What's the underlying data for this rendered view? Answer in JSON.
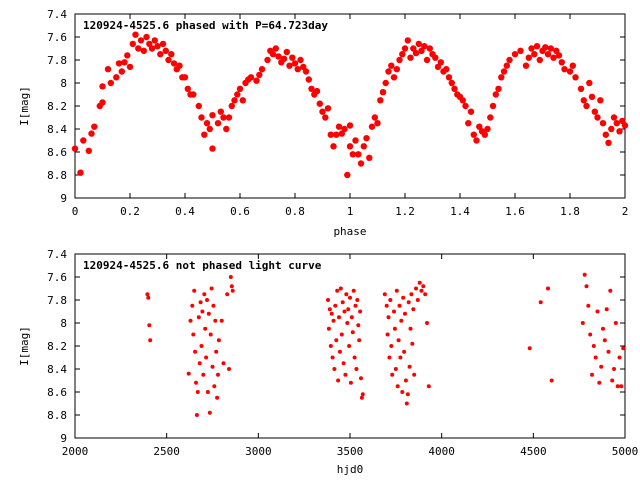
{
  "chart_data": [
    {
      "type": "scatter",
      "title": "120924-4525.6 phased with P=64.723day",
      "xlabel": "phase",
      "ylabel": "I[mag]",
      "xlim": [
        0,
        2
      ],
      "ylim": [
        9,
        7.4
      ],
      "y_inverted": true,
      "grid": false,
      "marker_color": "#ff0000",
      "marker": "filled-circle",
      "x_ticks": [
        "0",
        "0.2",
        "0.4",
        "0.6",
        "0.8",
        "1",
        "1.2",
        "1.4",
        "1.6",
        "1.8",
        "2"
      ],
      "y_ticks": [
        "7.4",
        "7.6",
        "7.8",
        "8",
        "8.2",
        "8.4",
        "8.6",
        "8.8",
        "9"
      ],
      "points": [
        [
          0.0,
          8.57
        ],
        [
          0.02,
          8.78
        ],
        [
          0.03,
          8.5
        ],
        [
          0.05,
          8.59
        ],
        [
          0.06,
          8.44
        ],
        [
          0.07,
          8.38
        ],
        [
          0.09,
          8.2
        ],
        [
          0.1,
          8.17
        ],
        [
          0.1,
          8.03
        ],
        [
          0.12,
          7.88
        ],
        [
          0.13,
          8.0
        ],
        [
          0.15,
          7.95
        ],
        [
          0.16,
          7.83
        ],
        [
          0.17,
          7.9
        ],
        [
          0.18,
          7.82
        ],
        [
          0.19,
          7.76
        ],
        [
          0.2,
          7.86
        ],
        [
          0.21,
          7.66
        ],
        [
          0.22,
          7.58
        ],
        [
          0.23,
          7.7
        ],
        [
          0.24,
          7.63
        ],
        [
          0.25,
          7.72
        ],
        [
          0.26,
          7.6
        ],
        [
          0.27,
          7.66
        ],
        [
          0.28,
          7.7
        ],
        [
          0.29,
          7.63
        ],
        [
          0.3,
          7.68
        ],
        [
          0.31,
          7.75
        ],
        [
          0.32,
          7.66
        ],
        [
          0.33,
          7.72
        ],
        [
          0.34,
          7.8
        ],
        [
          0.35,
          7.75
        ],
        [
          0.36,
          7.83
        ],
        [
          0.37,
          7.88
        ],
        [
          0.38,
          7.85
        ],
        [
          0.39,
          7.95
        ],
        [
          0.4,
          7.95
        ],
        [
          0.41,
          8.05
        ],
        [
          0.42,
          8.1
        ],
        [
          0.43,
          8.1
        ],
        [
          0.45,
          8.2
        ],
        [
          0.46,
          8.3
        ],
        [
          0.47,
          8.45
        ],
        [
          0.48,
          8.35
        ],
        [
          0.49,
          8.4
        ],
        [
          0.5,
          8.28
        ],
        [
          0.5,
          8.57
        ],
        [
          0.52,
          8.35
        ],
        [
          0.53,
          8.25
        ],
        [
          0.54,
          8.3
        ],
        [
          0.55,
          8.4
        ],
        [
          0.56,
          8.3
        ],
        [
          0.57,
          8.2
        ],
        [
          0.58,
          8.15
        ],
        [
          0.59,
          8.1
        ],
        [
          0.6,
          8.05
        ],
        [
          0.61,
          8.15
        ],
        [
          0.62,
          8.0
        ],
        [
          0.63,
          7.97
        ],
        [
          0.64,
          7.95
        ],
        [
          0.66,
          7.98
        ],
        [
          0.67,
          7.93
        ],
        [
          0.68,
          7.88
        ],
        [
          0.7,
          7.8
        ],
        [
          0.71,
          7.72
        ],
        [
          0.72,
          7.75
        ],
        [
          0.73,
          7.7
        ],
        [
          0.74,
          7.77
        ],
        [
          0.75,
          7.82
        ],
        [
          0.76,
          7.79
        ],
        [
          0.77,
          7.73
        ],
        [
          0.78,
          7.85
        ],
        [
          0.79,
          7.78
        ],
        [
          0.8,
          7.83
        ],
        [
          0.81,
          7.88
        ],
        [
          0.82,
          7.8
        ],
        [
          0.83,
          7.86
        ],
        [
          0.84,
          7.9
        ],
        [
          0.85,
          7.97
        ],
        [
          0.86,
          8.05
        ],
        [
          0.87,
          8.1
        ],
        [
          0.88,
          8.07
        ],
        [
          0.89,
          8.18
        ],
        [
          0.9,
          8.25
        ],
        [
          0.91,
          8.3
        ],
        [
          0.92,
          8.22
        ],
        [
          0.93,
          8.45
        ],
        [
          0.94,
          8.55
        ],
        [
          0.95,
          8.45
        ],
        [
          0.96,
          8.38
        ],
        [
          0.97,
          8.44
        ],
        [
          0.98,
          8.4
        ],
        [
          0.99,
          8.8
        ],
        [
          1.0,
          8.37
        ],
        [
          1.0,
          8.55
        ],
        [
          1.01,
          8.62
        ],
        [
          1.02,
          8.5
        ],
        [
          1.03,
          8.62
        ],
        [
          1.04,
          8.7
        ],
        [
          1.05,
          8.55
        ],
        [
          1.06,
          8.48
        ],
        [
          1.07,
          8.65
        ],
        [
          1.08,
          8.38
        ],
        [
          1.09,
          8.3
        ],
        [
          1.1,
          8.35
        ],
        [
          1.11,
          8.15
        ],
        [
          1.12,
          8.08
        ],
        [
          1.13,
          8.0
        ],
        [
          1.14,
          7.9
        ],
        [
          1.15,
          7.85
        ],
        [
          1.16,
          7.95
        ],
        [
          1.17,
          7.88
        ],
        [
          1.18,
          7.8
        ],
        [
          1.19,
          7.75
        ],
        [
          1.2,
          7.7
        ],
        [
          1.21,
          7.63
        ],
        [
          1.22,
          7.78
        ],
        [
          1.23,
          7.7
        ],
        [
          1.24,
          7.74
        ],
        [
          1.25,
          7.66
        ],
        [
          1.26,
          7.72
        ],
        [
          1.27,
          7.68
        ],
        [
          1.28,
          7.8
        ],
        [
          1.29,
          7.7
        ],
        [
          1.3,
          7.75
        ],
        [
          1.31,
          7.78
        ],
        [
          1.32,
          7.86
        ],
        [
          1.33,
          7.82
        ],
        [
          1.34,
          7.9
        ],
        [
          1.35,
          7.88
        ],
        [
          1.36,
          7.95
        ],
        [
          1.37,
          8.0
        ],
        [
          1.38,
          8.05
        ],
        [
          1.39,
          8.1
        ],
        [
          1.4,
          8.12
        ],
        [
          1.41,
          8.15
        ],
        [
          1.42,
          8.2
        ],
        [
          1.43,
          8.35
        ],
        [
          1.44,
          8.25
        ],
        [
          1.45,
          8.45
        ],
        [
          1.46,
          8.5
        ],
        [
          1.47,
          8.38
        ],
        [
          1.48,
          8.42
        ],
        [
          1.49,
          8.45
        ],
        [
          1.5,
          8.4
        ],
        [
          1.51,
          8.3
        ],
        [
          1.52,
          8.2
        ],
        [
          1.53,
          8.1
        ],
        [
          1.54,
          8.05
        ],
        [
          1.55,
          7.95
        ],
        [
          1.56,
          7.9
        ],
        [
          1.57,
          7.85
        ],
        [
          1.58,
          7.8
        ],
        [
          1.6,
          7.75
        ],
        [
          1.62,
          7.72
        ],
        [
          1.64,
          7.85
        ],
        [
          1.65,
          7.78
        ],
        [
          1.66,
          7.7
        ],
        [
          1.67,
          7.75
        ],
        [
          1.68,
          7.68
        ],
        [
          1.69,
          7.8
        ],
        [
          1.7,
          7.72
        ],
        [
          1.71,
          7.69
        ],
        [
          1.72,
          7.75
        ],
        [
          1.73,
          7.7
        ],
        [
          1.74,
          7.78
        ],
        [
          1.75,
          7.72
        ],
        [
          1.76,
          7.76
        ],
        [
          1.77,
          7.82
        ],
        [
          1.78,
          7.88
        ],
        [
          1.8,
          7.9
        ],
        [
          1.81,
          7.85
        ],
        [
          1.82,
          7.95
        ],
        [
          1.84,
          8.05
        ],
        [
          1.85,
          8.15
        ],
        [
          1.86,
          8.2
        ],
        [
          1.87,
          8.0
        ],
        [
          1.88,
          8.12
        ],
        [
          1.89,
          8.25
        ],
        [
          1.9,
          8.3
        ],
        [
          1.91,
          8.15
        ],
        [
          1.92,
          8.35
        ],
        [
          1.93,
          8.45
        ],
        [
          1.94,
          8.52
        ],
        [
          1.95,
          8.4
        ],
        [
          1.96,
          8.3
        ],
        [
          1.97,
          8.35
        ],
        [
          1.98,
          8.42
        ],
        [
          1.99,
          8.33
        ],
        [
          2.0,
          8.37
        ]
      ]
    },
    {
      "type": "scatter",
      "title": "120924-4525.6 not phased light curve",
      "xlabel": "hjd0",
      "ylabel": "I[mag]",
      "xlim": [
        2000,
        5000
      ],
      "ylim": [
        9,
        7.4
      ],
      "y_inverted": true,
      "grid": false,
      "marker_color": "#ff0000",
      "marker": "small-filled-circle",
      "x_ticks": [
        "2000",
        "2500",
        "3000",
        "3500",
        "4000",
        "4500",
        "5000"
      ],
      "y_ticks": [
        "7.4",
        "7.6",
        "7.8",
        "8",
        "8.2",
        "8.4",
        "8.6",
        "8.8",
        "9"
      ],
      "points": [
        [
          2395,
          7.75
        ],
        [
          2400,
          7.78
        ],
        [
          2405,
          8.02
        ],
        [
          2410,
          8.15
        ],
        [
          2620,
          8.44
        ],
        [
          2630,
          7.98
        ],
        [
          2640,
          7.85
        ],
        [
          2645,
          8.1
        ],
        [
          2650,
          7.72
        ],
        [
          2655,
          8.25
        ],
        [
          2660,
          8.52
        ],
        [
          2665,
          8.8
        ],
        [
          2670,
          8.6
        ],
        [
          2675,
          7.95
        ],
        [
          2680,
          8.35
        ],
        [
          2685,
          7.82
        ],
        [
          2690,
          8.2
        ],
        [
          2695,
          7.9
        ],
        [
          2700,
          8.45
        ],
        [
          2705,
          7.75
        ],
        [
          2710,
          8.05
        ],
        [
          2715,
          8.3
        ],
        [
          2720,
          7.8
        ],
        [
          2725,
          8.6
        ],
        [
          2730,
          7.92
        ],
        [
          2735,
          8.78
        ],
        [
          2740,
          8.1
        ],
        [
          2745,
          7.7
        ],
        [
          2750,
          8.38
        ],
        [
          2755,
          7.85
        ],
        [
          2760,
          8.55
        ],
        [
          2765,
          7.98
        ],
        [
          2770,
          8.25
        ],
        [
          2775,
          8.65
        ],
        [
          2780,
          8.45
        ],
        [
          2785,
          8.15
        ],
        [
          2800,
          7.98
        ],
        [
          2810,
          8.35
        ],
        [
          2830,
          7.75
        ],
        [
          2840,
          8.4
        ],
        [
          2850,
          7.6
        ],
        [
          2855,
          7.68
        ],
        [
          2860,
          7.72
        ],
        [
          3380,
          7.8
        ],
        [
          3385,
          8.05
        ],
        [
          3390,
          7.88
        ],
        [
          3395,
          8.2
        ],
        [
          3400,
          7.92
        ],
        [
          3405,
          8.3
        ],
        [
          3410,
          7.98
        ],
        [
          3415,
          8.4
        ],
        [
          3420,
          7.85
        ],
        [
          3425,
          8.15
        ],
        [
          3430,
          7.72
        ],
        [
          3435,
          8.5
        ],
        [
          3440,
          7.95
        ],
        [
          3445,
          8.25
        ],
        [
          3450,
          7.7
        ],
        [
          3455,
          8.1
        ],
        [
          3460,
          7.82
        ],
        [
          3465,
          8.35
        ],
        [
          3470,
          7.9
        ],
        [
          3475,
          8.45
        ],
        [
          3480,
          7.75
        ],
        [
          3485,
          8.0
        ],
        [
          3490,
          7.88
        ],
        [
          3495,
          8.2
        ],
        [
          3500,
          7.78
        ],
        [
          3505,
          8.52
        ],
        [
          3510,
          7.95
        ],
        [
          3515,
          8.08
        ],
        [
          3520,
          7.72
        ],
        [
          3525,
          8.3
        ],
        [
          3530,
          7.85
        ],
        [
          3535,
          8.4
        ],
        [
          3540,
          7.8
        ],
        [
          3545,
          8.02
        ],
        [
          3550,
          8.15
        ],
        [
          3555,
          7.9
        ],
        [
          3560,
          8.48
        ],
        [
          3565,
          8.65
        ],
        [
          3570,
          8.62
        ],
        [
          3690,
          7.75
        ],
        [
          3700,
          7.85
        ],
        [
          3705,
          8.1
        ],
        [
          3710,
          7.95
        ],
        [
          3715,
          8.3
        ],
        [
          3720,
          7.8
        ],
        [
          3725,
          8.2
        ],
        [
          3730,
          8.45
        ],
        [
          3740,
          7.9
        ],
        [
          3745,
          8.05
        ],
        [
          3750,
          8.4
        ],
        [
          3755,
          7.72
        ],
        [
          3760,
          8.55
        ],
        [
          3765,
          8.15
        ],
        [
          3770,
          7.85
        ],
        [
          3775,
          8.3
        ],
        [
          3780,
          7.98
        ],
        [
          3785,
          8.6
        ],
        [
          3790,
          7.78
        ],
        [
          3795,
          8.25
        ],
        [
          3800,
          7.92
        ],
        [
          3805,
          8.5
        ],
        [
          3810,
          8.7
        ],
        [
          3815,
          8.62
        ],
        [
          3820,
          7.82
        ],
        [
          3825,
          8.38
        ],
        [
          3830,
          8.05
        ],
        [
          3835,
          7.75
        ],
        [
          3840,
          8.18
        ],
        [
          3845,
          7.88
        ],
        [
          3850,
          8.45
        ],
        [
          3860,
          7.7
        ],
        [
          3870,
          7.8
        ],
        [
          3880,
          7.65
        ],
        [
          3890,
          7.72
        ],
        [
          3900,
          7.68
        ],
        [
          3910,
          7.75
        ],
        [
          3920,
          8.0
        ],
        [
          3930,
          8.55
        ],
        [
          4480,
          8.22
        ],
        [
          4540,
          7.82
        ],
        [
          4580,
          7.7
        ],
        [
          4600,
          8.5
        ],
        [
          4770,
          8.0
        ],
        [
          4780,
          7.58
        ],
        [
          4790,
          7.68
        ],
        [
          4800,
          7.85
        ],
        [
          4810,
          8.1
        ],
        [
          4820,
          8.45
        ],
        [
          4830,
          8.2
        ],
        [
          4840,
          8.3
        ],
        [
          4850,
          7.9
        ],
        [
          4860,
          8.52
        ],
        [
          4870,
          8.38
        ],
        [
          4880,
          8.05
        ],
        [
          4890,
          8.15
        ],
        [
          4900,
          7.88
        ],
        [
          4910,
          8.25
        ],
        [
          4920,
          7.72
        ],
        [
          4930,
          8.5
        ],
        [
          4940,
          8.4
        ],
        [
          4950,
          8.0
        ],
        [
          4960,
          8.55
        ],
        [
          4970,
          8.3
        ],
        [
          4980,
          8.55
        ],
        [
          4990,
          8.22
        ]
      ]
    }
  ]
}
